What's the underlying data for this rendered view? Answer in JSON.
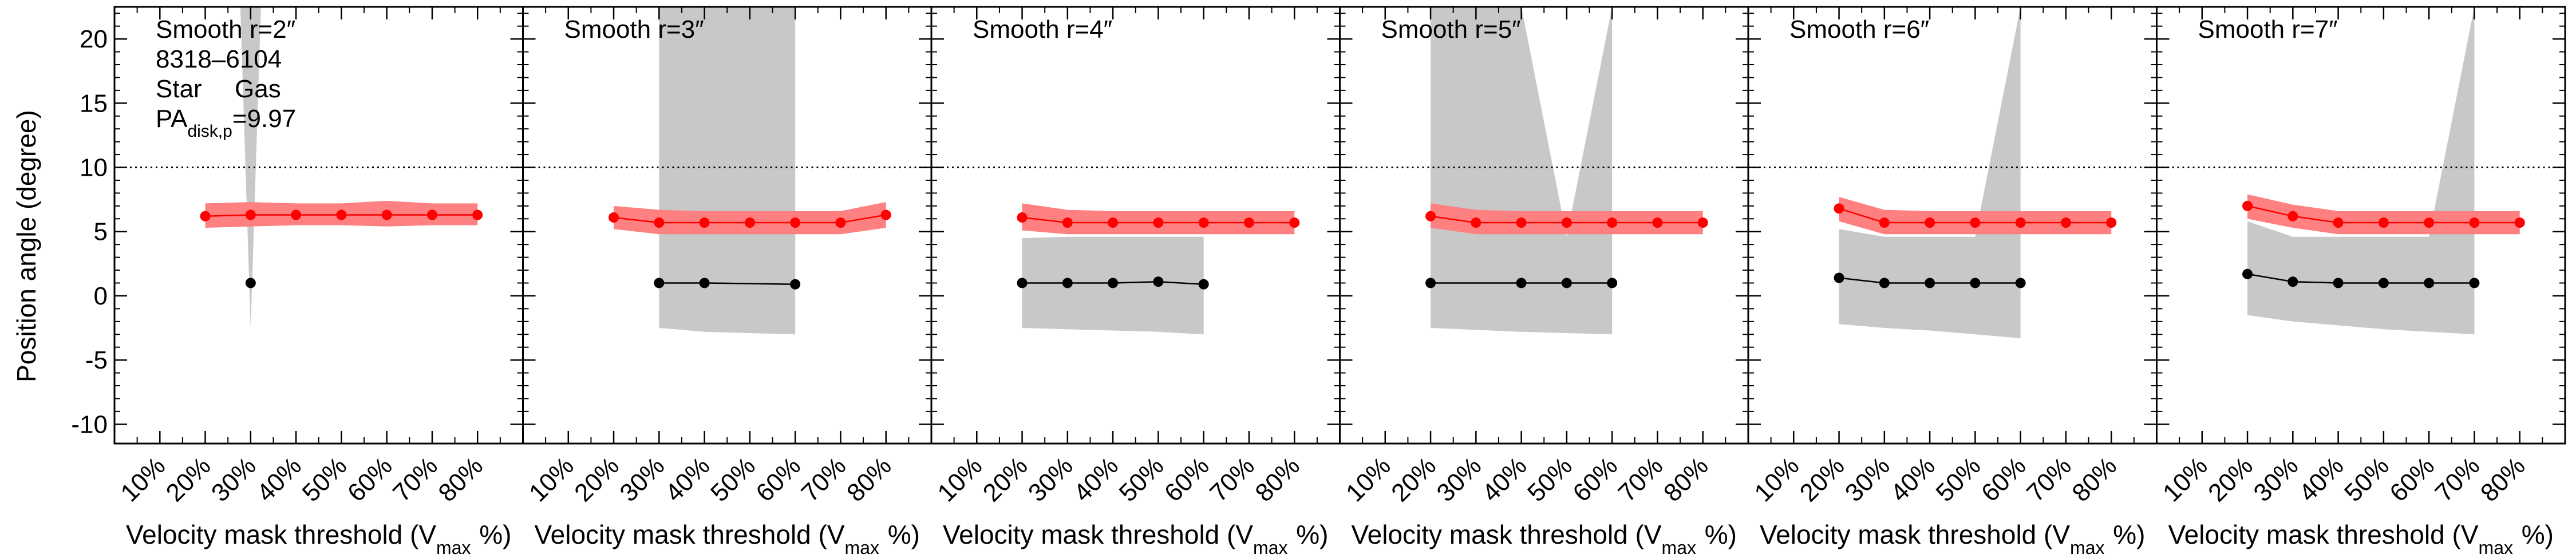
{
  "chart_data": {
    "type": "line",
    "ylabel": "Position angle (degree)",
    "ylim": [
      -11.5,
      22.5
    ],
    "yticks": [
      -10,
      -5,
      0,
      5,
      10,
      15,
      20
    ],
    "reference_line": {
      "y": 10,
      "style": "dotted"
    },
    "xtick_labels": [
      "10%",
      "20%",
      "30%",
      "40%",
      "50%",
      "60%",
      "70%",
      "80%"
    ],
    "xlabel_parts": {
      "main": "Velocity mask threshold (V",
      "sub": "max",
      "tail": " %)"
    },
    "annotations": {
      "galaxy_id": "8318–6104",
      "legend_star": "Star",
      "legend_gas": "Gas",
      "pa_prefix": "PA",
      "pa_sub": "disk,p",
      "pa_value": "=9.97"
    },
    "colors": {
      "star": "#000000",
      "gas": "#ff0000",
      "gas_band": "#ff8080",
      "star_band": "#c8c8c8"
    },
    "thresholds": [
      20,
      30,
      40,
      50,
      60,
      70,
      80
    ],
    "panels": [
      {
        "title": "Smooth r=2″",
        "gas": [
          6.2,
          6.3,
          6.3,
          6.3,
          6.3,
          6.3,
          6.3
        ],
        "gas_band": [
          [
            5.3,
            7.2
          ],
          [
            5.4,
            7.3
          ],
          [
            5.5,
            7.2
          ],
          [
            5.5,
            7.2
          ],
          [
            5.4,
            7.4
          ],
          [
            5.5,
            7.2
          ],
          [
            5.5,
            7.2
          ]
        ],
        "star_x": [
          30
        ],
        "star": [
          1.0
        ],
        "star_band": [
          [
            -2.5,
            22.5
          ]
        ]
      },
      {
        "title": "Smooth r=3″",
        "gas": [
          6.1,
          5.7,
          5.7,
          5.7,
          5.7,
          5.7,
          6.3
        ],
        "gas_band": [
          [
            5.2,
            7.0
          ],
          [
            4.8,
            6.7
          ],
          [
            4.8,
            6.6
          ],
          [
            4.8,
            6.6
          ],
          [
            4.8,
            6.6
          ],
          [
            4.8,
            6.6
          ],
          [
            5.3,
            7.3
          ]
        ],
        "star_x": [
          30,
          40,
          60
        ],
        "star": [
          1.0,
          1.0,
          0.9
        ],
        "star_band": [
          [
            -2.5,
            22.5
          ],
          [
            -2.8,
            22.5
          ],
          [
            -3.0,
            22.5
          ]
        ]
      },
      {
        "title": "Smooth r=4″",
        "gas": [
          6.1,
          5.7,
          5.7,
          5.7,
          5.7,
          5.7,
          5.7
        ],
        "gas_band": [
          [
            5.1,
            7.2
          ],
          [
            4.8,
            6.7
          ],
          [
            4.8,
            6.6
          ],
          [
            4.8,
            6.6
          ],
          [
            4.8,
            6.6
          ],
          [
            4.8,
            6.6
          ],
          [
            4.8,
            6.6
          ]
        ],
        "star_x": [
          20,
          30,
          40,
          50,
          60
        ],
        "star": [
          1.0,
          1.0,
          1.0,
          1.1,
          0.9
        ],
        "star_band": [
          [
            -2.5,
            4.5
          ],
          [
            -2.6,
            4.6
          ],
          [
            -2.7,
            4.6
          ],
          [
            -2.8,
            4.6
          ],
          [
            -3.0,
            4.6
          ]
        ]
      },
      {
        "title": "Smooth r=5″",
        "gas": [
          6.2,
          5.7,
          5.7,
          5.7,
          5.7,
          5.7,
          5.7
        ],
        "gas_band": [
          [
            5.3,
            7.2
          ],
          [
            4.8,
            6.7
          ],
          [
            4.8,
            6.6
          ],
          [
            4.8,
            6.6
          ],
          [
            4.8,
            6.6
          ],
          [
            4.8,
            6.6
          ],
          [
            4.8,
            6.6
          ]
        ],
        "star_x": [
          20,
          40,
          50,
          60
        ],
        "star": [
          1.0,
          1.0,
          1.0,
          1.0
        ],
        "star_band": [
          [
            -2.5,
            22.5
          ],
          [
            -2.8,
            22.5
          ],
          [
            -2.9,
            4.6
          ],
          [
            -3.0,
            22.5
          ]
        ]
      },
      {
        "title": "Smooth r=6″",
        "gas": [
          6.8,
          5.7,
          5.7,
          5.7,
          5.7,
          5.7,
          5.7
        ],
        "gas_band": [
          [
            5.8,
            7.7
          ],
          [
            4.8,
            6.7
          ],
          [
            4.8,
            6.6
          ],
          [
            4.8,
            6.6
          ],
          [
            4.8,
            6.6
          ],
          [
            4.8,
            6.6
          ],
          [
            4.8,
            6.6
          ]
        ],
        "star_x": [
          20,
          30,
          40,
          50,
          60
        ],
        "star": [
          1.4,
          1.0,
          1.0,
          1.0,
          1.0
        ],
        "star_band": [
          [
            -2.2,
            5.2
          ],
          [
            -2.5,
            4.6
          ],
          [
            -2.7,
            4.6
          ],
          [
            -3.0,
            4.6
          ],
          [
            -3.3,
            22.5
          ]
        ]
      },
      {
        "title": "Smooth r=7″",
        "gas": [
          7.0,
          6.2,
          5.7,
          5.7,
          5.7,
          5.7,
          5.7
        ],
        "gas_band": [
          [
            6.0,
            7.9
          ],
          [
            5.3,
            7.1
          ],
          [
            4.8,
            6.6
          ],
          [
            4.8,
            6.6
          ],
          [
            4.8,
            6.6
          ],
          [
            4.8,
            6.6
          ],
          [
            4.8,
            6.6
          ]
        ],
        "star_x": [
          20,
          30,
          40,
          50,
          60,
          70
        ],
        "star": [
          1.7,
          1.1,
          1.0,
          1.0,
          1.0,
          1.0
        ],
        "star_band": [
          [
            -1.5,
            5.8
          ],
          [
            -2.0,
            4.6
          ],
          [
            -2.3,
            4.6
          ],
          [
            -2.6,
            4.6
          ],
          [
            -2.8,
            4.6
          ],
          [
            -3.0,
            22.5
          ]
        ]
      }
    ]
  }
}
